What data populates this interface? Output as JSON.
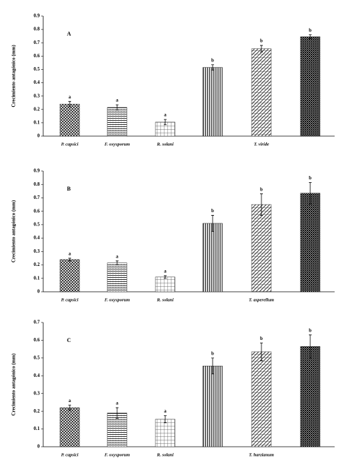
{
  "chart_data": [
    {
      "type": "bar",
      "panel": "A",
      "ylabel": "Crecimiento antagónico (mm)",
      "categories": [
        "P. capsici",
        "F. oxysporum",
        "R. solani",
        null,
        "T. viride",
        null
      ],
      "values": [
        0.24,
        0.215,
        0.105,
        0.515,
        0.655,
        0.745
      ],
      "errors": [
        0.02,
        0.02,
        0.02,
        0.02,
        0.025,
        0.015
      ],
      "letters": [
        "a",
        "a",
        "a",
        "b",
        "b",
        "b"
      ],
      "ylim": [
        0,
        0.9
      ],
      "yticks": [
        0,
        0.1,
        0.2,
        0.3,
        0.4,
        0.5,
        0.6,
        0.7,
        0.8,
        0.9
      ]
    },
    {
      "type": "bar",
      "panel": "B",
      "ylabel": "Crecimiento antagónico (mm)",
      "categories": [
        "P. capsici",
        "F. oxysporum",
        "R. solani",
        null,
        "T. asperellum",
        null
      ],
      "values": [
        0.24,
        0.215,
        0.11,
        0.51,
        0.65,
        0.735
      ],
      "errors": [
        0.01,
        0.015,
        0.01,
        0.06,
        0.08,
        0.08
      ],
      "letters": [
        "a",
        "a",
        "a",
        "b",
        "b",
        "b"
      ],
      "ylim": [
        0,
        0.9
      ],
      "yticks": [
        0,
        0.1,
        0.2,
        0.3,
        0.4,
        0.5,
        0.6,
        0.7,
        0.8,
        0.9
      ]
    },
    {
      "type": "bar",
      "panel": "C",
      "ylabel": "Crecimiento antagónico (mm)",
      "categories": [
        "P. capsici",
        "F. oxysporum",
        "R. solani",
        null,
        "T. harzianum",
        null
      ],
      "values": [
        0.22,
        0.19,
        0.155,
        0.455,
        0.535,
        0.565
      ],
      "errors": [
        0.015,
        0.03,
        0.02,
        0.045,
        0.05,
        0.065
      ],
      "letters": [
        "a",
        "a",
        "a",
        "b",
        "b",
        "b"
      ],
      "ylim": [
        0,
        0.7
      ],
      "yticks": [
        0,
        0.1,
        0.2,
        0.3,
        0.4,
        0.5,
        0.6,
        0.7
      ]
    }
  ]
}
